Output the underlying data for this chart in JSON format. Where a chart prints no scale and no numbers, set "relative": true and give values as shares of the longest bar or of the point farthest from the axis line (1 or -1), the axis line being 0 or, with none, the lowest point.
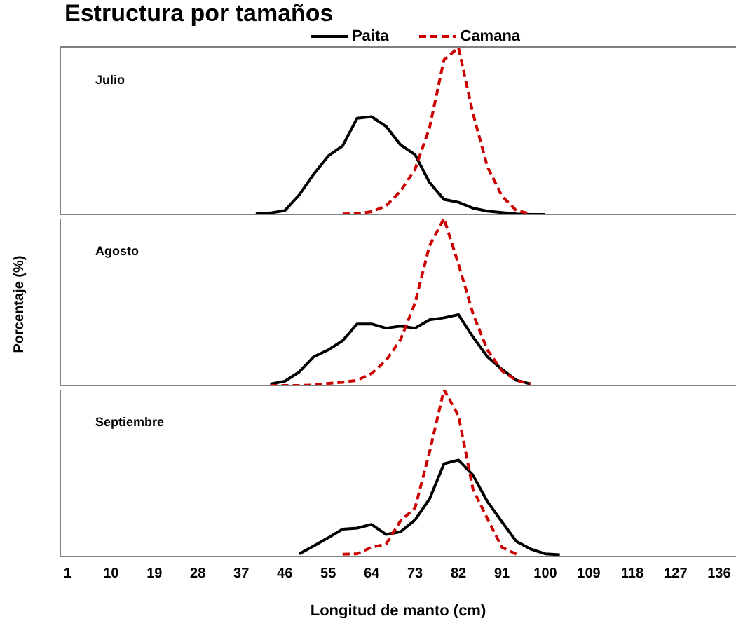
{
  "chart_data": [
    {
      "type": "line",
      "title": "Estructura por tamaños",
      "relative": true,
      "legend": "top",
      "tick_labels": false,
      "xlim": [
        -0.5,
        139.5
      ],
      "annotations": [
        "Julio"
      ],
      "series": [
        {
          "name": "Paita",
          "color": "#000000",
          "line_style": "solid",
          "x": [
            40,
            43,
            46,
            49,
            52,
            55,
            58,
            61,
            64,
            67,
            70,
            73,
            76,
            79,
            82,
            85,
            88,
            91,
            94,
            97,
            100
          ],
          "values": [
            0.003,
            0.009,
            0.023,
            0.117,
            0.242,
            0.35,
            0.411,
            0.577,
            0.586,
            0.528,
            0.417,
            0.359,
            0.192,
            0.09,
            0.073,
            0.038,
            0.02,
            0.012,
            0.003,
            0,
            0
          ]
        },
        {
          "name": "Camana",
          "color": "#cc0000",
          "line_style": "dashed",
          "x": [
            58,
            61,
            64,
            67,
            70,
            73,
            76,
            79,
            82,
            85,
            88,
            91,
            94,
            97
          ],
          "values": [
            0.003,
            0.006,
            0.017,
            0.052,
            0.14,
            0.271,
            0.519,
            0.927,
            1,
            0.606,
            0.286,
            0.111,
            0.023,
            0.003
          ]
        }
      ]
    },
    {
      "type": "line",
      "ylabel": "Porcentaje (%)",
      "relative": true,
      "tick_labels": false,
      "xlim": [
        -0.5,
        139.5
      ],
      "annotations": [
        "Agosto"
      ],
      "series": [
        {
          "color": "#000000",
          "line_style": "solid",
          "x": [
            43,
            46,
            49,
            52,
            55,
            58,
            61,
            64,
            67,
            70,
            73,
            76,
            79,
            82,
            85,
            88,
            91,
            94,
            97
          ],
          "values": [
            0.009,
            0.025,
            0.081,
            0.172,
            0.213,
            0.269,
            0.369,
            0.369,
            0.344,
            0.356,
            0.344,
            0.394,
            0.406,
            0.425,
            0.291,
            0.172,
            0.097,
            0.031,
            0.009
          ]
        },
        {
          "color": "#cc0000",
          "line_style": "dashed",
          "x": [
            43,
            46,
            49,
            52,
            55,
            58,
            61,
            64,
            67,
            70,
            73,
            76,
            79,
            82,
            85,
            88,
            91,
            94,
            97
          ],
          "values": [
            0,
            0,
            0,
            0.003,
            0.013,
            0.019,
            0.031,
            0.072,
            0.15,
            0.275,
            0.494,
            0.838,
            1,
            0.728,
            0.431,
            0.213,
            0.088,
            0.031,
            0.009
          ]
        }
      ]
    },
    {
      "type": "line",
      "xlabel": "Longitud de manto (cm)",
      "relative": true,
      "tick_labels": "x",
      "xlim": [
        -0.5,
        139.5
      ],
      "xticks": [
        1,
        10,
        19,
        28,
        37,
        46,
        55,
        64,
        73,
        82,
        91,
        100,
        109,
        118,
        127,
        136
      ],
      "annotations": [
        "Septiembre"
      ],
      "series": [
        {
          "color": "#000000",
          "line_style": "solid",
          "x": [
            49,
            52,
            55,
            58,
            61,
            64,
            67,
            70,
            73,
            76,
            79,
            82,
            85,
            88,
            91,
            94,
            97,
            100,
            103
          ],
          "values": [
            0.016,
            0.063,
            0.112,
            0.164,
            0.17,
            0.192,
            0.132,
            0.148,
            0.219,
            0.345,
            0.556,
            0.578,
            0.488,
            0.329,
            0.208,
            0.09,
            0.044,
            0.016,
            0.011
          ]
        },
        {
          "color": "#cc0000",
          "line_style": "dashed",
          "x": [
            58,
            61,
            64,
            67,
            70,
            73,
            76,
            79,
            82,
            85,
            88,
            91,
            94
          ],
          "values": [
            0.014,
            0.016,
            0.055,
            0.074,
            0.214,
            0.29,
            0.625,
            1,
            0.844,
            0.405,
            0.227,
            0.055,
            0.014
          ]
        }
      ]
    }
  ]
}
